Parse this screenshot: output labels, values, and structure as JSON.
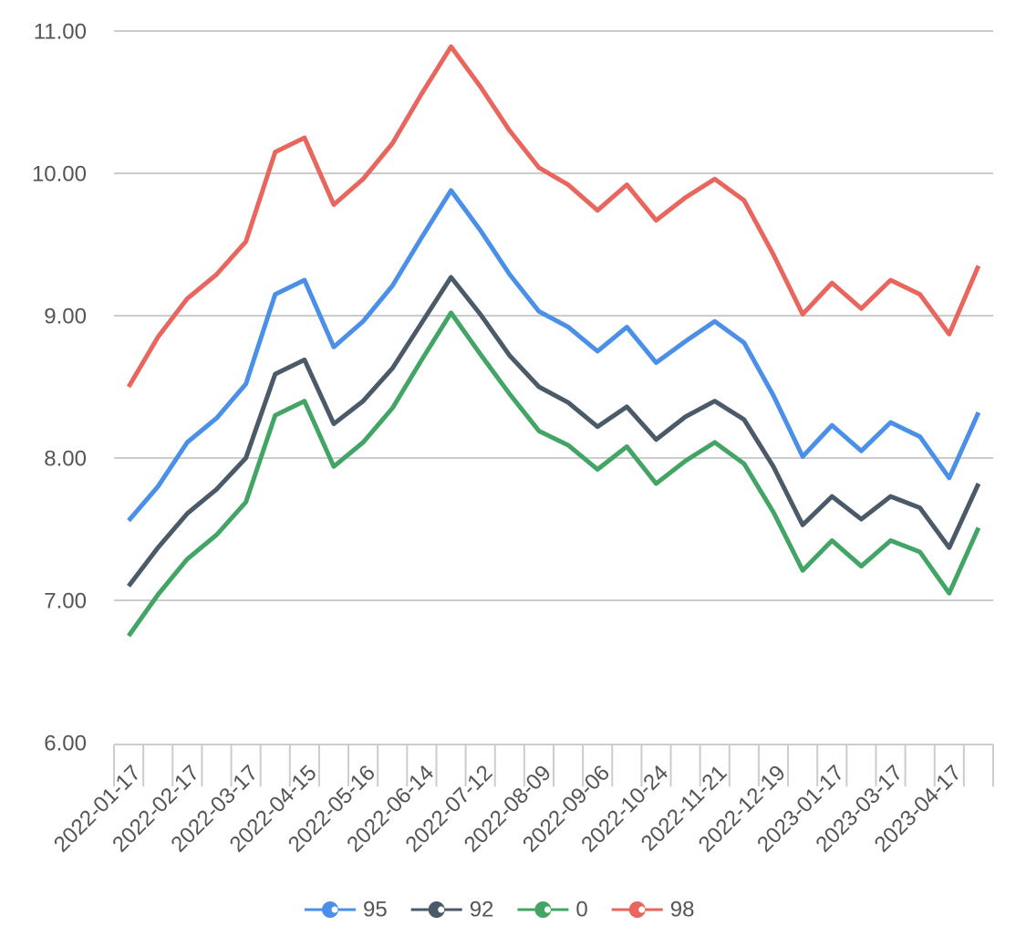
{
  "chart_data": {
    "type": "line",
    "categories": [
      "2022-01-17",
      null,
      "2022-02-17",
      null,
      "2022-03-17",
      null,
      "2022-04-15",
      null,
      "2022-05-16",
      null,
      "2022-06-14",
      null,
      "2022-07-12",
      null,
      "2022-08-09",
      null,
      "2022-09-06",
      null,
      "2022-10-24",
      null,
      "2022-11-21",
      null,
      "2022-12-19",
      null,
      "2023-01-17",
      null,
      "2023-03-17",
      null,
      "2023-04-17",
      null
    ],
    "series": [
      {
        "name": "95",
        "color": "#4a8fe8",
        "values": [
          7.56,
          7.8,
          8.11,
          8.28,
          8.52,
          9.15,
          9.25,
          8.78,
          8.96,
          9.21,
          9.55,
          9.88,
          9.6,
          9.29,
          9.03,
          8.92,
          8.75,
          8.92,
          8.67,
          8.82,
          8.96,
          8.81,
          8.44,
          8.01,
          8.23,
          8.05,
          8.25,
          8.15,
          7.86,
          8.32
        ]
      },
      {
        "name": "92",
        "color": "#4a5a68",
        "values": [
          7.1,
          7.37,
          7.61,
          7.78,
          8.0,
          8.59,
          8.69,
          8.24,
          8.4,
          8.63,
          8.95,
          9.27,
          9.01,
          8.72,
          8.5,
          8.39,
          8.22,
          8.36,
          8.13,
          8.29,
          8.4,
          8.27,
          7.94,
          7.53,
          7.73,
          7.57,
          7.73,
          7.65,
          7.37,
          7.82
        ]
      },
      {
        "name": "0",
        "color": "#43a565",
        "values": [
          6.75,
          7.04,
          7.29,
          7.46,
          7.69,
          8.3,
          8.4,
          7.94,
          8.11,
          8.35,
          8.69,
          9.02,
          8.73,
          8.45,
          8.19,
          8.09,
          7.92,
          8.08,
          7.82,
          7.98,
          8.11,
          7.96,
          7.62,
          7.21,
          7.42,
          7.24,
          7.42,
          7.34,
          7.05,
          7.51
        ]
      },
      {
        "name": "98",
        "color": "#e8665e",
        "values": [
          8.5,
          8.85,
          9.12,
          9.29,
          9.52,
          10.15,
          10.25,
          9.78,
          9.96,
          10.21,
          10.56,
          10.89,
          10.61,
          10.3,
          10.04,
          9.92,
          9.74,
          9.92,
          9.67,
          9.83,
          9.96,
          9.81,
          9.43,
          9.01,
          9.23,
          9.05,
          9.25,
          9.15,
          8.87,
          9.35
        ]
      }
    ],
    "ylim": [
      6,
      11
    ],
    "yticks": [
      {
        "value": 6,
        "label": "6.00"
      },
      {
        "value": 7,
        "label": "7.00"
      },
      {
        "value": 8,
        "label": "8.00"
      },
      {
        "value": 9,
        "label": "9.00"
      },
      {
        "value": 10,
        "label": "10.00"
      },
      {
        "value": 11,
        "label": "11.00"
      }
    ],
    "grid": true,
    "legend": "bottom"
  }
}
